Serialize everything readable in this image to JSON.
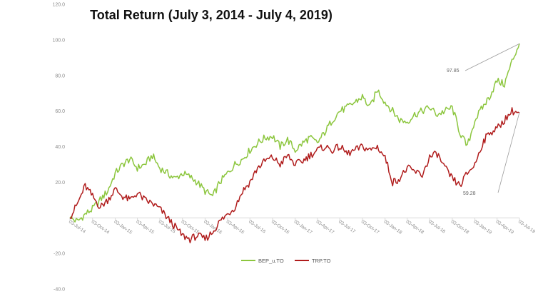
{
  "chart_data": {
    "type": "line",
    "title": "Total Return (July 3, 2014 - July 4, 2019)",
    "xlabel": "",
    "ylabel": "",
    "ylim": [
      -40,
      120
    ],
    "yticks": [
      "120.0",
      "100.0",
      "80.0",
      "60.0",
      "40.0",
      "20.0",
      "",
      "-20.0",
      "-40.0"
    ],
    "x_tick_labels": [
      "03-Jul-14",
      "03-Oct-14",
      "03-Jan-15",
      "03-Apr-15",
      "03-Jul-15",
      "03-Oct-15",
      "03-Jan-16",
      "03-Apr-16",
      "03-Jul-16",
      "03-Oct-16",
      "03-Jan-17",
      "03-Apr-17",
      "03-Jul-17",
      "03-Oct-17",
      "03-Jan-18",
      "03-Apr-18",
      "03-Jul-18",
      "03-Oct-18",
      "03-Jan-19",
      "03-Apr-19",
      "03-Jul-19"
    ],
    "x_tick_dates": [
      "2014-07-03",
      "2014-10-03",
      "2015-01-03",
      "2015-04-03",
      "2015-07-03",
      "2015-10-03",
      "2016-01-03",
      "2016-04-03",
      "2016-07-03",
      "2016-10-03",
      "2017-01-03",
      "2017-04-03",
      "2017-07-03",
      "2017-10-03",
      "2018-01-03",
      "2018-04-03",
      "2018-07-03",
      "2018-10-03",
      "2019-01-03",
      "2019-04-03",
      "2019-07-03"
    ],
    "grid": false,
    "legend_position": "bottom",
    "series": [
      {
        "name": "BEP_u.TO",
        "color": "#8cc63e",
        "x": [
          "2014-07-03",
          "2014-08-03",
          "2014-09-03",
          "2014-10-03",
          "2014-11-03",
          "2014-12-03",
          "2015-01-03",
          "2015-02-03",
          "2015-03-03",
          "2015-04-03",
          "2015-05-03",
          "2015-06-03",
          "2015-07-03",
          "2015-08-03",
          "2015-09-03",
          "2015-10-03",
          "2015-11-03",
          "2015-12-03",
          "2016-01-03",
          "2016-02-03",
          "2016-03-03",
          "2016-04-03",
          "2016-05-03",
          "2016-06-03",
          "2016-07-03",
          "2016-08-03",
          "2016-09-03",
          "2016-10-03",
          "2016-11-03",
          "2016-12-03",
          "2017-01-03",
          "2017-02-03",
          "2017-03-03",
          "2017-04-03",
          "2017-05-03",
          "2017-06-03",
          "2017-07-03",
          "2017-08-03",
          "2017-09-03",
          "2017-10-03",
          "2017-11-03",
          "2017-12-03",
          "2018-01-03",
          "2018-02-03",
          "2018-03-03",
          "2018-04-03",
          "2018-05-03",
          "2018-06-03",
          "2018-07-03",
          "2018-08-03",
          "2018-09-03",
          "2018-10-03",
          "2018-11-03",
          "2018-12-03",
          "2019-01-03",
          "2019-02-03",
          "2019-03-03",
          "2019-04-03",
          "2019-05-03",
          "2019-06-03",
          "2019-07-03"
        ],
        "values": [
          0,
          -2,
          2,
          5,
          10,
          15,
          25,
          30,
          33,
          28,
          30,
          35,
          28,
          25,
          22,
          25,
          23,
          20,
          15,
          12,
          20,
          25,
          30,
          33,
          38,
          42,
          45,
          46,
          40,
          44,
          38,
          42,
          45,
          42,
          48,
          55,
          60,
          62,
          65,
          68,
          62,
          72,
          65,
          60,
          55,
          54,
          58,
          60,
          62,
          58,
          60,
          62,
          48,
          40,
          55,
          62,
          68,
          77,
          75,
          88,
          98
        ]
      },
      {
        "name": "TRP.TO",
        "color": "#b01c1c",
        "x": [
          "2014-07-03",
          "2014-08-03",
          "2014-09-03",
          "2014-10-03",
          "2014-11-03",
          "2014-12-03",
          "2015-01-03",
          "2015-02-03",
          "2015-03-03",
          "2015-04-03",
          "2015-05-03",
          "2015-06-03",
          "2015-07-03",
          "2015-08-03",
          "2015-09-03",
          "2015-10-03",
          "2015-11-03",
          "2015-12-03",
          "2016-01-03",
          "2016-02-03",
          "2016-03-03",
          "2016-04-03",
          "2016-05-03",
          "2016-06-03",
          "2016-07-03",
          "2016-08-03",
          "2016-09-03",
          "2016-10-03",
          "2016-11-03",
          "2016-12-03",
          "2017-01-03",
          "2017-02-03",
          "2017-03-03",
          "2017-04-03",
          "2017-05-03",
          "2017-06-03",
          "2017-07-03",
          "2017-08-03",
          "2017-09-03",
          "2017-10-03",
          "2017-11-03",
          "2017-12-03",
          "2018-01-03",
          "2018-02-03",
          "2018-03-03",
          "2018-04-03",
          "2018-05-03",
          "2018-06-03",
          "2018-07-03",
          "2018-08-03",
          "2018-09-03",
          "2018-10-03",
          "2018-11-03",
          "2018-12-03",
          "2019-01-03",
          "2019-02-03",
          "2019-03-03",
          "2019-04-03",
          "2019-05-03",
          "2019-06-03",
          "2019-07-03"
        ],
        "values": [
          0,
          8,
          18,
          12,
          6,
          10,
          16,
          12,
          10,
          14,
          10,
          8,
          5,
          0,
          -5,
          -10,
          -12,
          -10,
          -12,
          -8,
          -2,
          2,
          6,
          15,
          20,
          28,
          32,
          34,
          30,
          35,
          30,
          32,
          35,
          38,
          40,
          38,
          40,
          36,
          38,
          40,
          38,
          40,
          34,
          20,
          22,
          28,
          26,
          24,
          34,
          36,
          28,
          22,
          18,
          25,
          30,
          42,
          48,
          50,
          55,
          60,
          59
        ]
      }
    ],
    "annotations": [
      {
        "text": "97.85",
        "x": "2019-07-03",
        "y": 97.85,
        "series": "BEP_u.TO"
      },
      {
        "text": "59.28",
        "x": "2019-07-03",
        "y": 59.28,
        "series": "TRP.TO"
      }
    ],
    "legend": [
      "BEP_u.TO",
      "TRP.TO"
    ]
  }
}
